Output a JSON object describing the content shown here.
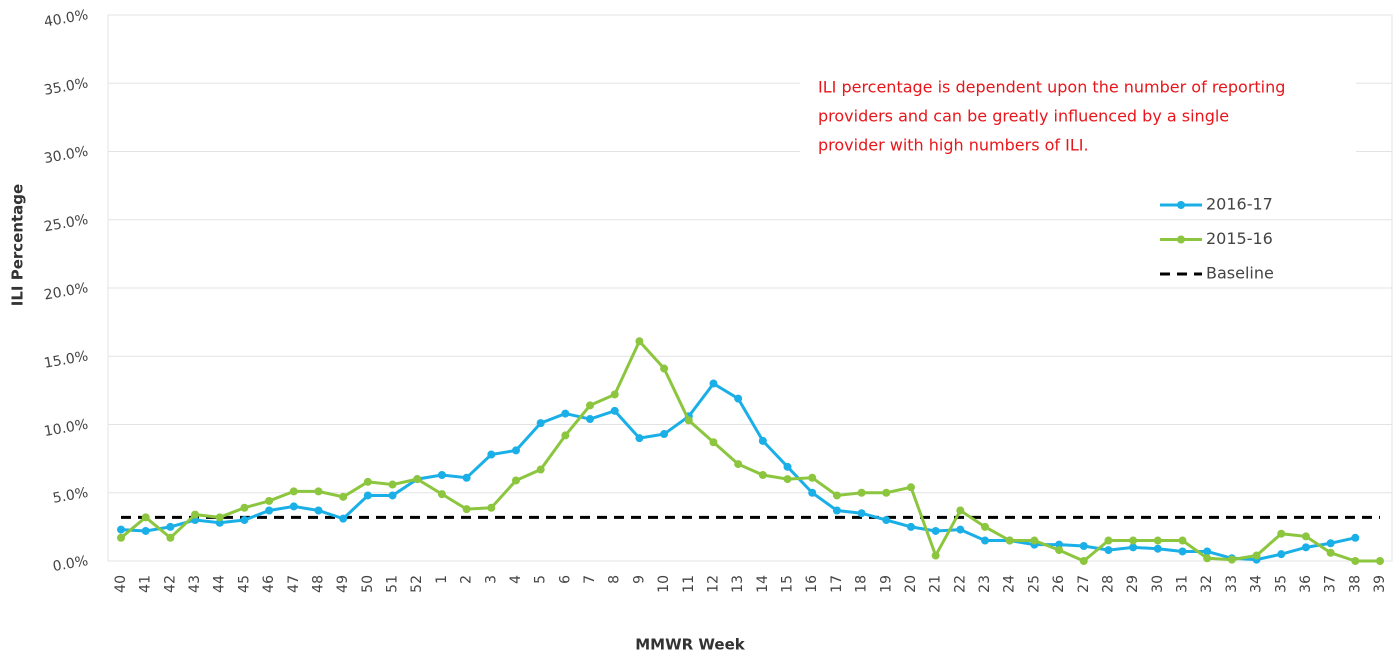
{
  "chart_data": {
    "type": "line",
    "x_label": "MMWR Week",
    "y_label": "ILI Percentage",
    "annotation": [
      "ILI percentage is dependent upon the number of reporting",
      "providers and can be greatly influenced by a single",
      "provider with high numbers of ILI."
    ],
    "annotation_color": "#e8161b",
    "categories": [
      "40",
      "41",
      "42",
      "43",
      "44",
      "45",
      "46",
      "47",
      "48",
      "49",
      "50",
      "51",
      "52",
      "1",
      "2",
      "3",
      "4",
      "5",
      "6",
      "7",
      "8",
      "9",
      "10",
      "11",
      "12",
      "13",
      "14",
      "15",
      "16",
      "17",
      "18",
      "19",
      "20",
      "21",
      "22",
      "23",
      "24",
      "25",
      "26",
      "27",
      "28",
      "29",
      "30",
      "31",
      "32",
      "33",
      "34",
      "35",
      "36",
      "37",
      "38",
      "39"
    ],
    "series": [
      {
        "name": "2016-17",
        "color": "#1aafe6",
        "values": [
          2.3,
          2.2,
          2.5,
          3.0,
          2.8,
          3.0,
          3.7,
          4.0,
          3.7,
          3.1,
          4.8,
          4.8,
          6.0,
          6.3,
          6.1,
          7.8,
          8.1,
          10.1,
          10.8,
          10.4,
          11.0,
          9.0,
          9.3,
          10.6,
          13.0,
          11.9,
          8.8,
          6.9,
          5.0,
          3.7,
          3.5,
          3.0,
          2.5,
          2.2,
          2.3,
          1.5,
          1.5,
          1.2,
          1.2,
          1.1,
          0.8,
          1.0,
          0.9,
          0.7,
          0.7,
          0.2,
          0.1,
          0.5,
          1.0,
          1.3,
          1.7,
          null
        ]
      },
      {
        "name": "2015-16",
        "color": "#8cc63f",
        "values": [
          1.7,
          3.2,
          1.7,
          3.4,
          3.2,
          3.9,
          4.4,
          5.1,
          5.1,
          4.7,
          5.8,
          5.6,
          6.0,
          4.9,
          3.8,
          3.9,
          5.9,
          6.7,
          9.2,
          11.4,
          12.2,
          16.1,
          14.1,
          10.3,
          8.7,
          7.1,
          6.3,
          6.0,
          6.1,
          4.8,
          5.0,
          5.0,
          5.4,
          0.4,
          3.7,
          2.5,
          1.5,
          1.5,
          0.8,
          0,
          1.5,
          1.5,
          1.5,
          1.5,
          0.2,
          0.1,
          0.4,
          2.0,
          1.8,
          0.6,
          0,
          0
        ]
      }
    ],
    "baseline": {
      "name": "Baseline",
      "value": 3.2,
      "color": "#000000"
    },
    "ylim": [
      0,
      40
    ],
    "yticks": [
      {
        "value": 0,
        "label": "0.0%"
      },
      {
        "value": 5,
        "label": "5.0%"
      },
      {
        "value": 10,
        "label": "10.0%"
      },
      {
        "value": 15,
        "label": "15.0%"
      },
      {
        "value": 20,
        "label": "20.0%"
      },
      {
        "value": 25,
        "label": "25.0%"
      },
      {
        "value": 30,
        "label": "30.0%"
      },
      {
        "value": 35,
        "label": "35.0%"
      },
      {
        "value": 40,
        "label": "40.0%"
      }
    ],
    "grid": true
  }
}
